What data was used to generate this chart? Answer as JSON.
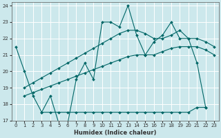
{
  "bg_color": "#cce8ec",
  "grid_color": "#ffffff",
  "line_color": "#006666",
  "xlabel": "Humidex (Indice chaleur)",
  "xlim": [
    -0.5,
    23.5
  ],
  "ylim": [
    17,
    24.2
  ],
  "yticks": [
    17,
    18,
    19,
    20,
    21,
    22,
    23,
    24
  ],
  "xticks": [
    0,
    1,
    2,
    3,
    4,
    5,
    6,
    7,
    8,
    9,
    10,
    11,
    12,
    13,
    14,
    15,
    16,
    17,
    18,
    19,
    20,
    21,
    22,
    23
  ],
  "series1_x": [
    0,
    1,
    2,
    3,
    4,
    5,
    6,
    7,
    8,
    9,
    10,
    11,
    12,
    13,
    14,
    15,
    16,
    17,
    18,
    19,
    20,
    21,
    22
  ],
  "series1_y": [
    21.5,
    20.0,
    18.5,
    17.5,
    18.5,
    16.8,
    16.8,
    19.5,
    20.5,
    19.5,
    23.0,
    23.0,
    22.7,
    24.0,
    22.2,
    21.0,
    21.8,
    22.2,
    23.0,
    22.0,
    22.0,
    20.5,
    17.8
  ],
  "series2_x": [
    1,
    2,
    3,
    4,
    5,
    6,
    7,
    8,
    9,
    10,
    11,
    12,
    13,
    14,
    15,
    16,
    17,
    18,
    19,
    20,
    21,
    22,
    23
  ],
  "series2_y": [
    19.0,
    19.3,
    19.6,
    19.9,
    20.2,
    20.5,
    20.8,
    21.1,
    21.4,
    21.7,
    22.0,
    22.3,
    22.5,
    22.5,
    22.3,
    22.0,
    22.0,
    22.2,
    22.5,
    22.0,
    22.0,
    21.8,
    21.5
  ],
  "series3_x": [
    1,
    2,
    3,
    4,
    5,
    6,
    7,
    8,
    9,
    10,
    11,
    12,
    13,
    14,
    15,
    16,
    17,
    18,
    19,
    20,
    21,
    22,
    23
  ],
  "series3_y": [
    18.5,
    18.7,
    18.9,
    19.1,
    19.3,
    19.5,
    19.7,
    19.9,
    20.1,
    20.3,
    20.5,
    20.7,
    20.9,
    21.0,
    21.0,
    21.0,
    21.2,
    21.4,
    21.5,
    21.5,
    21.5,
    21.3,
    21.0
  ],
  "series4_x": [
    3,
    4,
    5,
    6,
    7,
    8,
    9,
    10,
    11,
    12,
    13,
    14,
    15,
    16,
    17,
    18,
    19,
    20,
    21,
    22
  ],
  "series4_y": [
    17.5,
    17.5,
    17.5,
    17.5,
    17.5,
    17.5,
    17.5,
    17.5,
    17.5,
    17.5,
    17.5,
    17.5,
    17.5,
    17.5,
    17.5,
    17.5,
    17.5,
    17.5,
    17.8,
    17.8
  ]
}
